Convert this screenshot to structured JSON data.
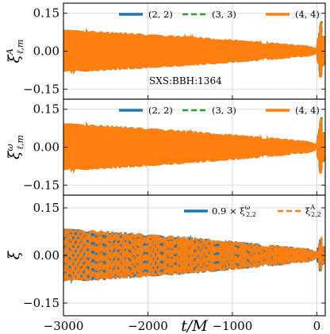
{
  "chart_data": [
    {
      "type": "line",
      "ylabel": "ξ^A_{ℓ,m}",
      "ylabel_main": "ξ",
      "ylabel_sup": "A",
      "ylabel_sub": "ℓ,m",
      "xlim": [
        -3000,
        100
      ],
      "ylim": [
        -0.19,
        0.19
      ],
      "yticks": [
        -0.15,
        0.0,
        0.15
      ],
      "yticklabels": [
        "−0.15",
        "0.00",
        "0.15"
      ],
      "grid": true,
      "legend_loc": "top",
      "annotation": "SXS:BBH:1364",
      "series": [
        {
          "name": "(2,2)",
          "color": "#1f77b4",
          "dash": "solid",
          "amplitude": 0.085,
          "x": [
            -3000,
            -2500,
            -2000,
            -1500,
            -1000,
            -500,
            -100,
            0,
            50
          ],
          "y_envelope": [
            0.085,
            0.077,
            0.068,
            0.058,
            0.046,
            0.033,
            0.022,
            0.01,
            0.12
          ]
        },
        {
          "name": "(3,3)",
          "color": "#2ca02c",
          "dash": "dashed",
          "amplitude": 0.085,
          "x": [
            -3000,
            -2500,
            -2000,
            -1500,
            -1000,
            -500,
            -100,
            0,
            50
          ],
          "y_envelope": [
            0.085,
            0.077,
            0.068,
            0.058,
            0.046,
            0.033,
            0.022,
            0.01,
            0.12
          ]
        },
        {
          "name": "(4,4)",
          "color": "#ff7f0e",
          "dash": "solid",
          "amplitude": 0.085,
          "x": [
            -3000,
            -2500,
            -2000,
            -1500,
            -1000,
            -500,
            -100,
            0,
            50
          ],
          "y_envelope": [
            0.085,
            0.077,
            0.068,
            0.058,
            0.046,
            0.033,
            0.022,
            0.01,
            0.12
          ]
        }
      ]
    },
    {
      "type": "line",
      "ylabel": "ξ^ω_{ℓ,m}",
      "ylabel_main": "ξ",
      "ylabel_sup": "ω",
      "ylabel_sub": "ℓ,m",
      "xlim": [
        -3000,
        100
      ],
      "ylim": [
        -0.19,
        0.19
      ],
      "yticks": [
        -0.15,
        0.0,
        0.15
      ],
      "yticklabels": [
        "−0.15",
        "0.00",
        "0.15"
      ],
      "grid": true,
      "legend_loc": "top",
      "series": [
        {
          "name": "(2,2)",
          "color": "#1f77b4",
          "dash": "solid",
          "amplitude": 0.095,
          "x": [
            -3000,
            -2500,
            -2000,
            -1500,
            -1000,
            -500,
            -100,
            0,
            50
          ],
          "y_envelope": [
            0.095,
            0.086,
            0.076,
            0.064,
            0.051,
            0.037,
            0.024,
            0.01,
            0.12
          ]
        },
        {
          "name": "(3,3)",
          "color": "#2ca02c",
          "dash": "dashed",
          "amplitude": 0.095,
          "x": [
            -3000,
            -2500,
            -2000,
            -1500,
            -1000,
            -500,
            -100,
            0,
            50
          ],
          "y_envelope": [
            0.095,
            0.086,
            0.076,
            0.064,
            0.051,
            0.037,
            0.024,
            0.01,
            0.12
          ]
        },
        {
          "name": "(4,4)",
          "color": "#ff7f0e",
          "dash": "solid",
          "amplitude": 0.095,
          "x": [
            -3000,
            -2500,
            -2000,
            -1500,
            -1000,
            -500,
            -100,
            0,
            50
          ],
          "y_envelope": [
            0.095,
            0.086,
            0.076,
            0.064,
            0.051,
            0.037,
            0.024,
            0.01,
            0.12
          ]
        }
      ]
    },
    {
      "type": "line",
      "ylabel": "ξ",
      "ylabel_main": "ξ",
      "ylabel_sup": "",
      "ylabel_sub": "",
      "xlabel": "t/M",
      "xlim": [
        -3000,
        100
      ],
      "ylim": [
        -0.19,
        0.19
      ],
      "yticks": [
        -0.15,
        0.0,
        0.15
      ],
      "yticklabels": [
        "−0.15",
        "0.00",
        "0.15"
      ],
      "xticks": [
        -3000,
        -2000,
        -1000,
        0
      ],
      "xticklabels": [
        "−3000",
        "−2000",
        "−1000",
        "0"
      ],
      "grid": true,
      "legend_loc": "top-right",
      "series": [
        {
          "name": "0.9 × ξ^ω_{2,2}",
          "legend_main": "0.9 × ξ",
          "legend_sup": "ω",
          "legend_sub": "2,2",
          "color": "#1f77b4",
          "dash": "solid",
          "amplitude": 0.085,
          "x": [
            -3000,
            -2500,
            -2000,
            -1500,
            -1000,
            -500,
            -100,
            0,
            50
          ],
          "y_envelope": [
            0.085,
            0.077,
            0.068,
            0.058,
            0.046,
            0.033,
            0.022,
            0.01,
            0.06
          ]
        },
        {
          "name": "ξ^A_{2,2}",
          "legend_main": "ξ",
          "legend_sup": "A",
          "legend_sub": "2,2",
          "color": "#ff7f0e",
          "dash": "dashed",
          "amplitude": 0.085,
          "x": [
            -3000,
            -2500,
            -2000,
            -1500,
            -1000,
            -500,
            -100,
            0,
            50
          ],
          "y_envelope": [
            0.085,
            0.077,
            0.068,
            0.058,
            0.046,
            0.033,
            0.022,
            0.01,
            0.06
          ]
        }
      ]
    }
  ]
}
